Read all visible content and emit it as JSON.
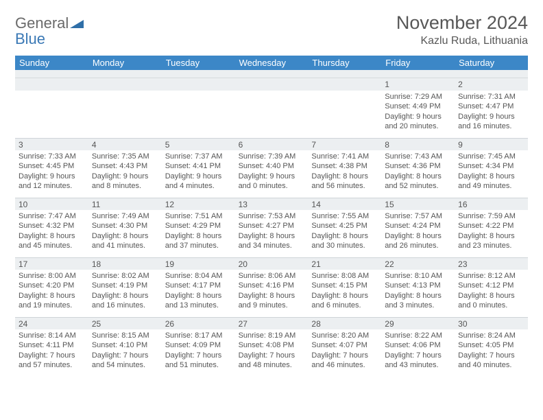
{
  "brand": {
    "line1": "General",
    "line2": "Blue"
  },
  "title": "November 2024",
  "location": "Kazlu Ruda, Lithuania",
  "colors": {
    "header_bg": "#3c87c7",
    "header_fg": "#ffffff",
    "numbar_bg": "#eceff1",
    "border": "#cfd4d8",
    "text": "#555555",
    "brand_gray": "#6a6a6a",
    "brand_blue": "#3a78b5"
  },
  "daysOfWeek": [
    "Sunday",
    "Monday",
    "Tuesday",
    "Wednesday",
    "Thursday",
    "Friday",
    "Saturday"
  ],
  "weeks": [
    [
      {
        "n": "",
        "sunrise": "",
        "sunset": "",
        "daylight": ""
      },
      {
        "n": "",
        "sunrise": "",
        "sunset": "",
        "daylight": ""
      },
      {
        "n": "",
        "sunrise": "",
        "sunset": "",
        "daylight": ""
      },
      {
        "n": "",
        "sunrise": "",
        "sunset": "",
        "daylight": ""
      },
      {
        "n": "",
        "sunrise": "",
        "sunset": "",
        "daylight": ""
      },
      {
        "n": "1",
        "sunrise": "Sunrise: 7:29 AM",
        "sunset": "Sunset: 4:49 PM",
        "daylight": "Daylight: 9 hours and 20 minutes."
      },
      {
        "n": "2",
        "sunrise": "Sunrise: 7:31 AM",
        "sunset": "Sunset: 4:47 PM",
        "daylight": "Daylight: 9 hours and 16 minutes."
      }
    ],
    [
      {
        "n": "3",
        "sunrise": "Sunrise: 7:33 AM",
        "sunset": "Sunset: 4:45 PM",
        "daylight": "Daylight: 9 hours and 12 minutes."
      },
      {
        "n": "4",
        "sunrise": "Sunrise: 7:35 AM",
        "sunset": "Sunset: 4:43 PM",
        "daylight": "Daylight: 9 hours and 8 minutes."
      },
      {
        "n": "5",
        "sunrise": "Sunrise: 7:37 AM",
        "sunset": "Sunset: 4:41 PM",
        "daylight": "Daylight: 9 hours and 4 minutes."
      },
      {
        "n": "6",
        "sunrise": "Sunrise: 7:39 AM",
        "sunset": "Sunset: 4:40 PM",
        "daylight": "Daylight: 9 hours and 0 minutes."
      },
      {
        "n": "7",
        "sunrise": "Sunrise: 7:41 AM",
        "sunset": "Sunset: 4:38 PM",
        "daylight": "Daylight: 8 hours and 56 minutes."
      },
      {
        "n": "8",
        "sunrise": "Sunrise: 7:43 AM",
        "sunset": "Sunset: 4:36 PM",
        "daylight": "Daylight: 8 hours and 52 minutes."
      },
      {
        "n": "9",
        "sunrise": "Sunrise: 7:45 AM",
        "sunset": "Sunset: 4:34 PM",
        "daylight": "Daylight: 8 hours and 49 minutes."
      }
    ],
    [
      {
        "n": "10",
        "sunrise": "Sunrise: 7:47 AM",
        "sunset": "Sunset: 4:32 PM",
        "daylight": "Daylight: 8 hours and 45 minutes."
      },
      {
        "n": "11",
        "sunrise": "Sunrise: 7:49 AM",
        "sunset": "Sunset: 4:30 PM",
        "daylight": "Daylight: 8 hours and 41 minutes."
      },
      {
        "n": "12",
        "sunrise": "Sunrise: 7:51 AM",
        "sunset": "Sunset: 4:29 PM",
        "daylight": "Daylight: 8 hours and 37 minutes."
      },
      {
        "n": "13",
        "sunrise": "Sunrise: 7:53 AM",
        "sunset": "Sunset: 4:27 PM",
        "daylight": "Daylight: 8 hours and 34 minutes."
      },
      {
        "n": "14",
        "sunrise": "Sunrise: 7:55 AM",
        "sunset": "Sunset: 4:25 PM",
        "daylight": "Daylight: 8 hours and 30 minutes."
      },
      {
        "n": "15",
        "sunrise": "Sunrise: 7:57 AM",
        "sunset": "Sunset: 4:24 PM",
        "daylight": "Daylight: 8 hours and 26 minutes."
      },
      {
        "n": "16",
        "sunrise": "Sunrise: 7:59 AM",
        "sunset": "Sunset: 4:22 PM",
        "daylight": "Daylight: 8 hours and 23 minutes."
      }
    ],
    [
      {
        "n": "17",
        "sunrise": "Sunrise: 8:00 AM",
        "sunset": "Sunset: 4:20 PM",
        "daylight": "Daylight: 8 hours and 19 minutes."
      },
      {
        "n": "18",
        "sunrise": "Sunrise: 8:02 AM",
        "sunset": "Sunset: 4:19 PM",
        "daylight": "Daylight: 8 hours and 16 minutes."
      },
      {
        "n": "19",
        "sunrise": "Sunrise: 8:04 AM",
        "sunset": "Sunset: 4:17 PM",
        "daylight": "Daylight: 8 hours and 13 minutes."
      },
      {
        "n": "20",
        "sunrise": "Sunrise: 8:06 AM",
        "sunset": "Sunset: 4:16 PM",
        "daylight": "Daylight: 8 hours and 9 minutes."
      },
      {
        "n": "21",
        "sunrise": "Sunrise: 8:08 AM",
        "sunset": "Sunset: 4:15 PM",
        "daylight": "Daylight: 8 hours and 6 minutes."
      },
      {
        "n": "22",
        "sunrise": "Sunrise: 8:10 AM",
        "sunset": "Sunset: 4:13 PM",
        "daylight": "Daylight: 8 hours and 3 minutes."
      },
      {
        "n": "23",
        "sunrise": "Sunrise: 8:12 AM",
        "sunset": "Sunset: 4:12 PM",
        "daylight": "Daylight: 8 hours and 0 minutes."
      }
    ],
    [
      {
        "n": "24",
        "sunrise": "Sunrise: 8:14 AM",
        "sunset": "Sunset: 4:11 PM",
        "daylight": "Daylight: 7 hours and 57 minutes."
      },
      {
        "n": "25",
        "sunrise": "Sunrise: 8:15 AM",
        "sunset": "Sunset: 4:10 PM",
        "daylight": "Daylight: 7 hours and 54 minutes."
      },
      {
        "n": "26",
        "sunrise": "Sunrise: 8:17 AM",
        "sunset": "Sunset: 4:09 PM",
        "daylight": "Daylight: 7 hours and 51 minutes."
      },
      {
        "n": "27",
        "sunrise": "Sunrise: 8:19 AM",
        "sunset": "Sunset: 4:08 PM",
        "daylight": "Daylight: 7 hours and 48 minutes."
      },
      {
        "n": "28",
        "sunrise": "Sunrise: 8:20 AM",
        "sunset": "Sunset: 4:07 PM",
        "daylight": "Daylight: 7 hours and 46 minutes."
      },
      {
        "n": "29",
        "sunrise": "Sunrise: 8:22 AM",
        "sunset": "Sunset: 4:06 PM",
        "daylight": "Daylight: 7 hours and 43 minutes."
      },
      {
        "n": "30",
        "sunrise": "Sunrise: 8:24 AM",
        "sunset": "Sunset: 4:05 PM",
        "daylight": "Daylight: 7 hours and 40 minutes."
      }
    ]
  ]
}
